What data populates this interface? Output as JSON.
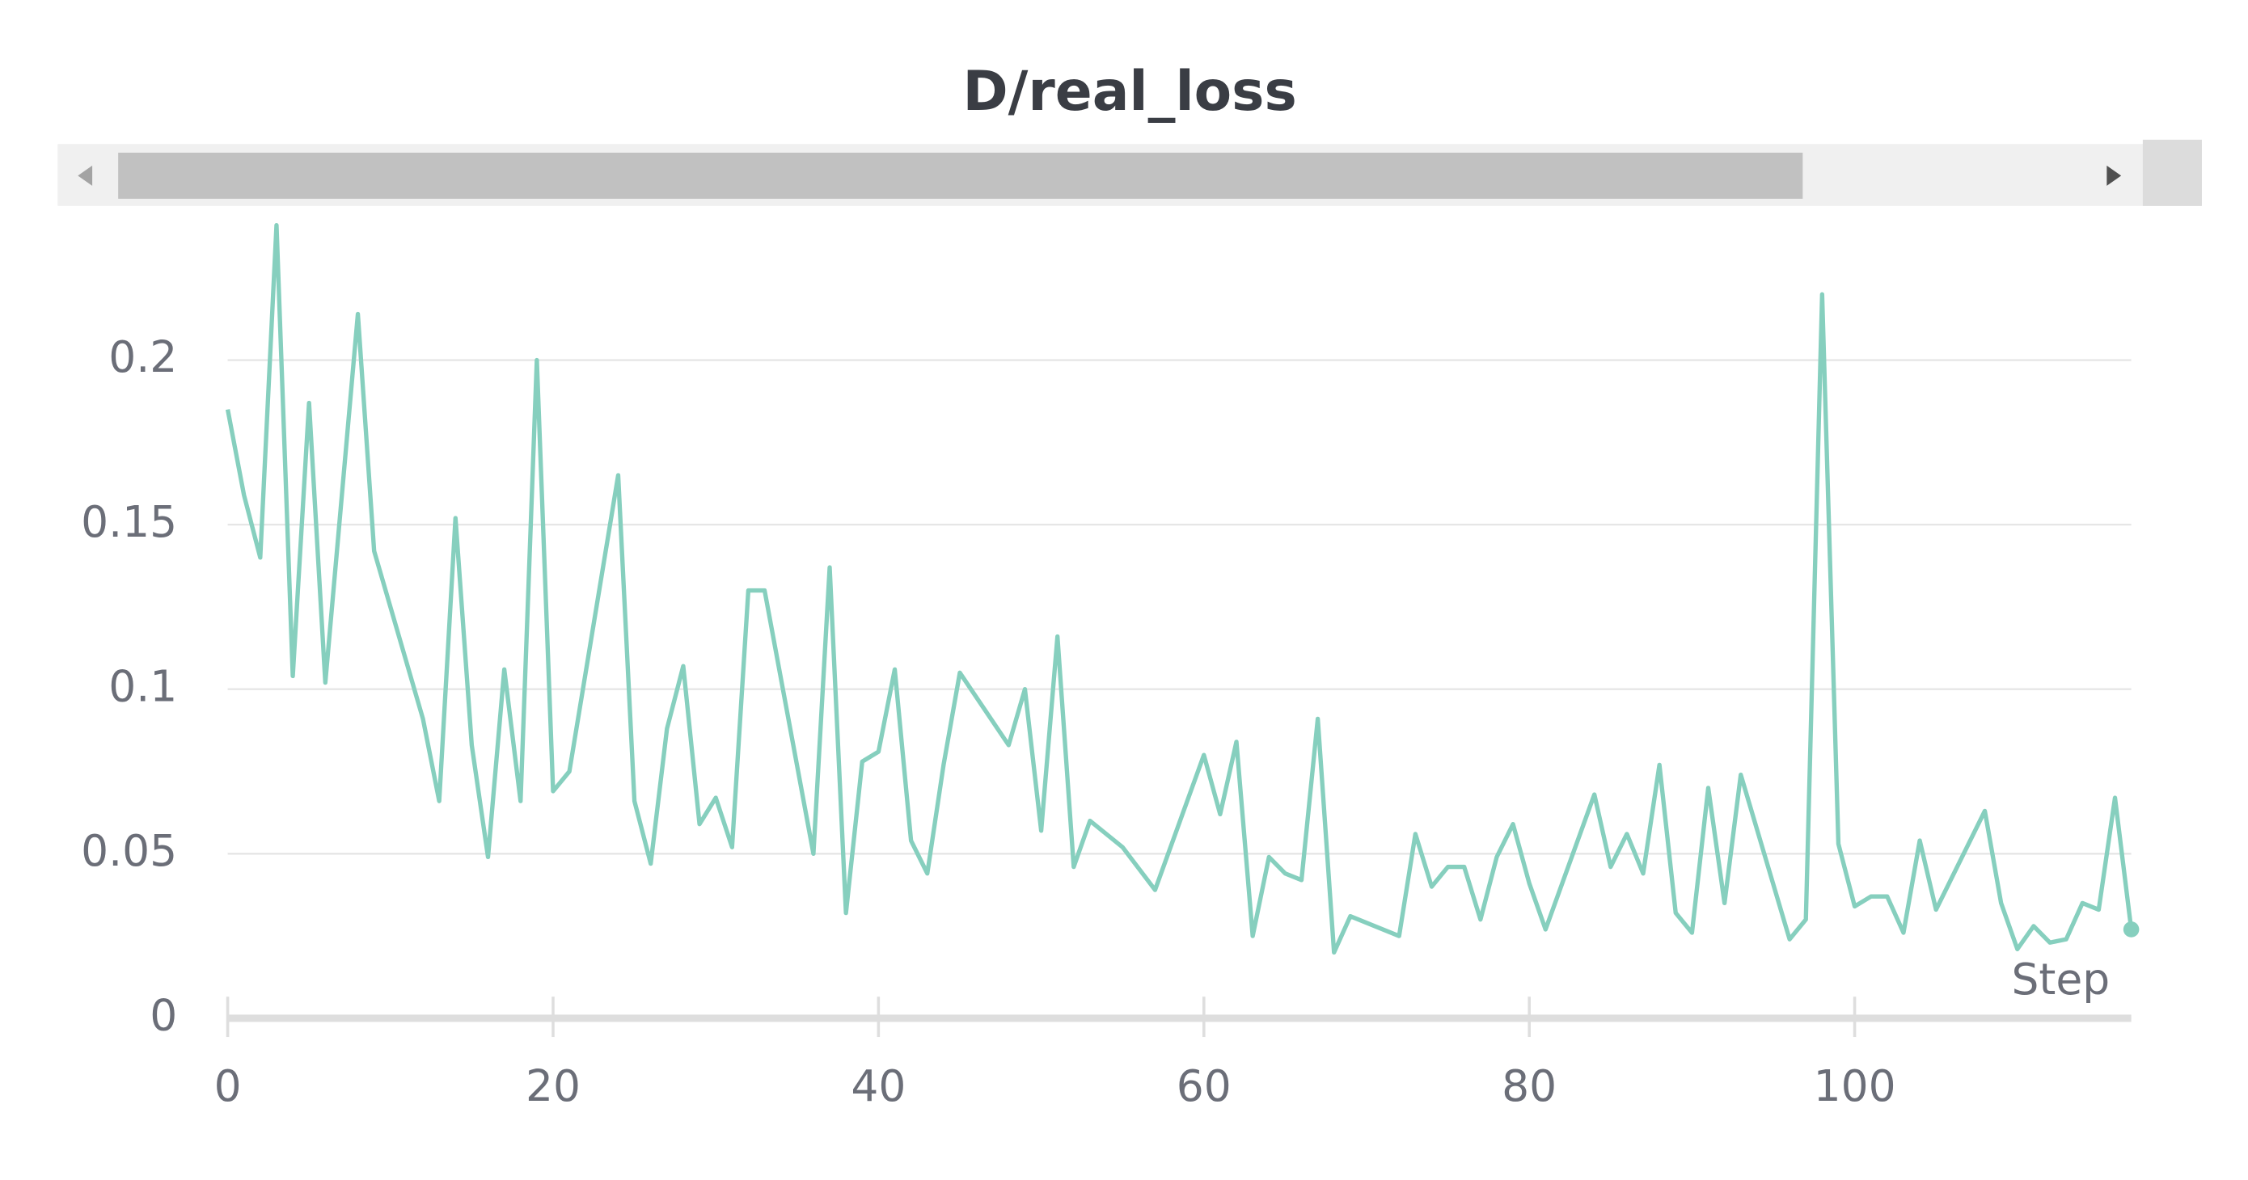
{
  "chart_data": {
    "type": "line",
    "title": "D/real_loss",
    "x_label": "Step",
    "color": "#86cfbe",
    "x": [
      0,
      1,
      2,
      3,
      4,
      5,
      6,
      8,
      9,
      12,
      13,
      14,
      15,
      16,
      17,
      18,
      19,
      20,
      21,
      24,
      25,
      26,
      27,
      28,
      29,
      30,
      31,
      32,
      33,
      36,
      37,
      38,
      39,
      40,
      41,
      42,
      43,
      44,
      45,
      48,
      49,
      50,
      51,
      52,
      53,
      55,
      57,
      60,
      61,
      62,
      63,
      64,
      65,
      66,
      67,
      68,
      69,
      72,
      73,
      74,
      75,
      76,
      77,
      78,
      79,
      80,
      81,
      84,
      85,
      86,
      87,
      88,
      89,
      90,
      91,
      92,
      93,
      96,
      97,
      98,
      99,
      100,
      101,
      102,
      103,
      104,
      105,
      108,
      109,
      110,
      111,
      112,
      113,
      114,
      115,
      116,
      117
    ],
    "values": [
      0.185,
      0.159,
      0.14,
      0.241,
      0.104,
      0.187,
      0.102,
      0.214,
      0.142,
      0.091,
      0.066,
      0.152,
      0.083,
      0.049,
      0.106,
      0.066,
      0.2,
      0.069,
      0.075,
      0.165,
      0.066,
      0.047,
      0.088,
      0.107,
      0.059,
      0.067,
      0.052,
      0.13,
      0.13,
      0.05,
      0.137,
      0.032,
      0.078,
      0.081,
      0.106,
      0.054,
      0.044,
      0.077,
      0.105,
      0.083,
      0.1,
      0.057,
      0.116,
      0.046,
      0.06,
      0.052,
      0.039,
      0.08,
      0.062,
      0.084,
      0.025,
      0.049,
      0.044,
      0.042,
      0.091,
      0.02,
      0.031,
      0.025,
      0.056,
      0.04,
      0.046,
      0.046,
      0.03,
      0.049,
      0.059,
      0.041,
      0.027,
      0.068,
      0.046,
      0.056,
      0.044,
      0.077,
      0.032,
      0.026,
      0.07,
      0.035,
      0.074,
      0.024,
      0.03,
      0.22,
      0.053,
      0.034,
      0.037,
      0.037,
      0.026,
      0.054,
      0.033,
      0.063,
      0.035,
      0.021,
      0.028,
      0.023,
      0.024,
      0.035,
      0.033,
      0.067,
      0.027
    ],
    "xlim": [
      0,
      117
    ],
    "ylim": [
      0,
      0.244
    ],
    "xticks": [
      0,
      20,
      40,
      60,
      80,
      100
    ],
    "yticks": [
      0,
      0.05,
      0.1,
      0.15,
      0.2
    ],
    "grid": true
  }
}
